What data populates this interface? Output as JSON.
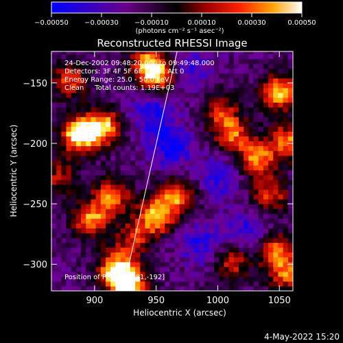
{
  "chart_data": {
    "type": "heatmap",
    "title": "Reconstructed RHESSI Image",
    "xlabel": "Heliocentric X (arcsec)",
    "ylabel": "Heliocentric Y (arcsec)",
    "xlim": [
      865,
      1061
    ],
    "ylim": [
      -322,
      -124
    ],
    "x_ticks": [
      900,
      950,
      1000,
      1050
    ],
    "y_ticks": [
      -150,
      -200,
      -250,
      -300
    ],
    "grid": false,
    "colorbar": {
      "ticks": [
        -0.0005,
        -0.0003,
        -0.0001,
        0.0001,
        0.0003,
        0.0005
      ],
      "tick_labels": [
        "-0.00050",
        "-0.00030",
        "-0.00010",
        "0.00010",
        "0.00030",
        "0.00050"
      ],
      "range": [
        -0.0005,
        0.0005
      ],
      "unit_label": "(photons cm⁻² s⁻¹ asec⁻²)"
    },
    "annotations": [
      "24-Dec-2002 09:48:20.000 to 09:49:48.000",
      "Detectors: 3F 4F 5F 6F 7F 8F, Att 0",
      "Energy Range: 25.0 - 50.0 keV",
      "Clean     Total counts: 1.19E+03"
    ],
    "peak_label": "Position of Peak = [881,-192]",
    "limb_line": {
      "x": [
        923,
        967
      ],
      "y": [
        -322,
        -124
      ]
    },
    "hot_regions": [
      {
        "x": 885,
        "y": -195,
        "level": 1.0
      },
      {
        "x": 905,
        "y": -188,
        "level": 0.85
      },
      {
        "x": 878,
        "y": -150,
        "level": 0.6
      },
      {
        "x": 895,
        "y": -265,
        "level": 0.75
      },
      {
        "x": 912,
        "y": -245,
        "level": 0.7
      },
      {
        "x": 930,
        "y": -280,
        "level": 0.5
      },
      {
        "x": 915,
        "y": -305,
        "level": 0.8
      },
      {
        "x": 925,
        "y": -318,
        "level": 1.0
      },
      {
        "x": 948,
        "y": -262,
        "level": 0.85
      },
      {
        "x": 965,
        "y": -245,
        "level": 0.7
      },
      {
        "x": 950,
        "y": -145,
        "level": 0.8
      },
      {
        "x": 940,
        "y": -135,
        "level": 0.6
      },
      {
        "x": 1000,
        "y": -175,
        "level": 0.55
      },
      {
        "x": 1010,
        "y": -195,
        "level": 0.65
      },
      {
        "x": 1030,
        "y": -215,
        "level": 0.75
      },
      {
        "x": 1048,
        "y": -160,
        "level": 0.85
      },
      {
        "x": 1055,
        "y": -200,
        "level": 0.7
      },
      {
        "x": 1040,
        "y": -245,
        "level": 0.6
      },
      {
        "x": 1045,
        "y": -290,
        "level": 0.7
      },
      {
        "x": 1010,
        "y": -300,
        "level": 0.55
      },
      {
        "x": 1055,
        "y": -310,
        "level": 0.65
      },
      {
        "x": 870,
        "y": -230,
        "level": 0.45
      }
    ],
    "cold_regions": [
      {
        "x": 960,
        "y": -205,
        "level": 0.6
      },
      {
        "x": 945,
        "y": -175,
        "level": 0.55
      },
      {
        "x": 985,
        "y": -285,
        "level": 0.5
      },
      {
        "x": 1025,
        "y": -275,
        "level": 0.5
      },
      {
        "x": 1000,
        "y": -230,
        "level": 0.45
      },
      {
        "x": 975,
        "y": -140,
        "level": 0.45
      }
    ]
  },
  "footer_timestamp": "4-May-2022 15:20"
}
